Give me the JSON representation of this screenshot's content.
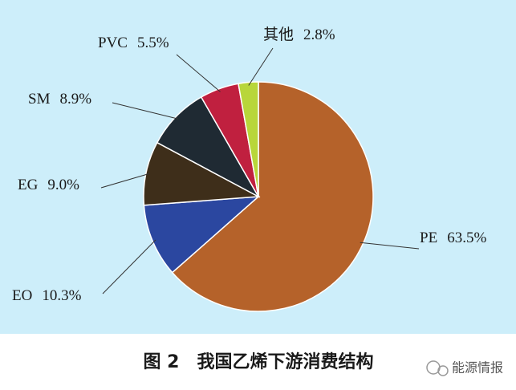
{
  "chart_data": {
    "type": "pie",
    "categories": [
      "PE",
      "EO",
      "EG",
      "SM",
      "PVC",
      "其他"
    ],
    "values": [
      63.5,
      10.3,
      9.0,
      8.9,
      5.5,
      2.8
    ],
    "value_labels": [
      "63.5%",
      "10.3%",
      "9.0%",
      "8.9%",
      "5.5%",
      "2.8%"
    ],
    "colors": [
      "#b5622a",
      "#2b47a0",
      "#3e2e1a",
      "#1f2a33",
      "#c0203f",
      "#b8d63a"
    ]
  },
  "caption": "图 2　我国乙烯下游消费结构",
  "watermark": "能源情报"
}
